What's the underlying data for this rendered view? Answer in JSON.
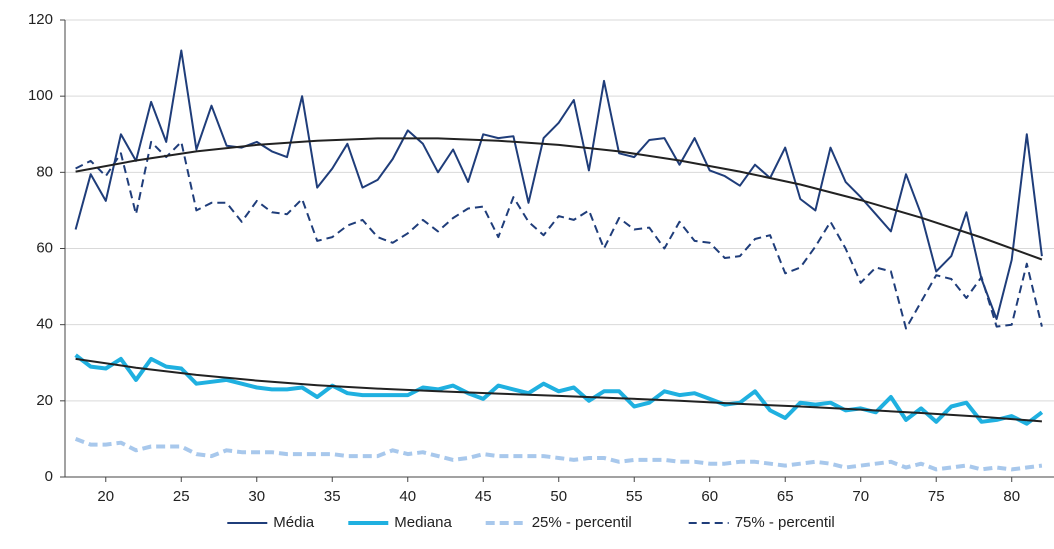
{
  "chart_data": {
    "type": "line",
    "x": [
      18,
      19,
      20,
      21,
      22,
      23,
      24,
      25,
      26,
      27,
      28,
      29,
      30,
      31,
      32,
      33,
      34,
      35,
      36,
      37,
      38,
      39,
      40,
      41,
      42,
      43,
      44,
      45,
      46,
      47,
      48,
      49,
      50,
      51,
      52,
      53,
      54,
      55,
      56,
      57,
      58,
      59,
      60,
      61,
      62,
      63,
      64,
      65,
      66,
      67,
      68,
      69,
      70,
      71,
      72,
      73,
      74,
      75,
      76,
      77,
      78,
      79,
      80,
      81,
      82
    ],
    "xlim": [
      17.3,
      82.8
    ],
    "xticks": [
      20,
      25,
      30,
      35,
      40,
      45,
      50,
      55,
      60,
      65,
      70,
      75,
      80
    ],
    "ylim": [
      0,
      120
    ],
    "yticks": [
      0,
      20,
      40,
      60,
      80,
      100,
      120
    ],
    "grid": true,
    "series": [
      {
        "name": "Média",
        "color": "#1f3d7a",
        "width": 2,
        "dash": "none",
        "values": [
          65,
          79.5,
          72.5,
          90,
          83,
          98.5,
          88,
          112,
          86,
          97.5,
          87,
          86.5,
          88,
          85.5,
          84,
          100,
          76,
          81,
          87.5,
          76,
          78,
          83.5,
          91,
          87.5,
          80,
          86,
          77.5,
          90,
          89,
          89.5,
          72,
          89,
          93,
          99,
          80.5,
          104,
          85,
          84,
          88.5,
          89,
          82,
          89,
          80.5,
          79,
          76.5,
          82,
          78.5,
          86.5,
          73,
          70,
          86.5,
          77.5,
          73.5,
          69,
          64.5,
          79.5,
          69,
          54,
          58,
          69.5,
          52,
          41.5,
          57,
          90,
          58
        ]
      },
      {
        "name": "Mediana",
        "color": "#1fb0e0",
        "width": 4,
        "dash": "none",
        "values": [
          32,
          29,
          28.5,
          31,
          25.5,
          31,
          29,
          28.5,
          24.5,
          25,
          25.5,
          24.5,
          23.5,
          23,
          23,
          23.5,
          21,
          24,
          22,
          21.5,
          21.5,
          21.5,
          21.5,
          23.5,
          23,
          24,
          22,
          20.5,
          24,
          23,
          22,
          24.5,
          22.5,
          23.5,
          20,
          22.5,
          22.5,
          18.5,
          19.5,
          22.5,
          21.5,
          22,
          20.5,
          19,
          19.5,
          22.5,
          17.5,
          15.5,
          19.5,
          19,
          19.5,
          17.5,
          18,
          17,
          21,
          15,
          18,
          14.5,
          18.5,
          19.5,
          14.5,
          15,
          16,
          14,
          17
        ]
      },
      {
        "name": "25% - percentil",
        "color": "#a8c8ec",
        "width": 4,
        "dash": "9 5",
        "values": [
          10,
          8.5,
          8.5,
          9,
          7,
          8,
          8,
          8,
          6,
          5.5,
          7,
          6.5,
          6.5,
          6.5,
          6,
          6,
          6,
          6,
          5.5,
          5.5,
          5.5,
          7,
          6,
          6.5,
          5.5,
          4.5,
          5,
          6,
          5.5,
          5.5,
          5.5,
          5.5,
          5,
          4.5,
          5,
          5,
          4,
          4.5,
          4.5,
          4.5,
          4,
          4,
          3.5,
          3.5,
          4,
          4,
          3.5,
          3,
          3.5,
          4,
          3.5,
          2.5,
          3,
          3.5,
          4,
          2.5,
          3.5,
          2,
          2.5,
          3,
          2,
          2.5,
          2,
          2.5,
          3
        ]
      },
      {
        "name": "75% - percentil",
        "color": "#1f3d7a",
        "width": 2,
        "dash": "8 5",
        "values": [
          81,
          83,
          79,
          85,
          69,
          88,
          84,
          88,
          70,
          72,
          72,
          67,
          72.5,
          69.5,
          69,
          73,
          62,
          63,
          66,
          67.5,
          63,
          61.5,
          64,
          67.5,
          64.5,
          68,
          70.5,
          71,
          63,
          73.5,
          67,
          63.5,
          68.5,
          67.5,
          70,
          60,
          68,
          65,
          65.5,
          60,
          67,
          62,
          61.5,
          57.5,
          58,
          62.5,
          63.5,
          53.5,
          55,
          60.5,
          67,
          60,
          51,
          55,
          54,
          39,
          46,
          53,
          52,
          47,
          52.5,
          39.5,
          40,
          56,
          39.5
        ]
      }
    ],
    "trendlines": [
      {
        "color": "#222222",
        "x": [
          18,
          22,
          26,
          30,
          34,
          38,
          42,
          46,
          50,
          54,
          58,
          62,
          66,
          70,
          74,
          78,
          82
        ],
        "values": [
          80.2,
          83.1,
          85.5,
          87.2,
          88.3,
          88.9,
          88.9,
          88.3,
          87.2,
          85.5,
          83.1,
          80.2,
          76.8,
          72.7,
          68.1,
          62.9,
          57.1
        ]
      },
      {
        "color": "#222222",
        "x": [
          18,
          22,
          26,
          30,
          34,
          38,
          42,
          46,
          50,
          54,
          58,
          62,
          66,
          70,
          74,
          78,
          82
        ],
        "values": [
          31,
          28.7,
          26.8,
          25.3,
          24.1,
          23.2,
          22.5,
          21.9,
          21.3,
          20.7,
          20,
          19.2,
          18.5,
          17.7,
          16.8,
          15.8,
          14.6
        ]
      }
    ]
  }
}
